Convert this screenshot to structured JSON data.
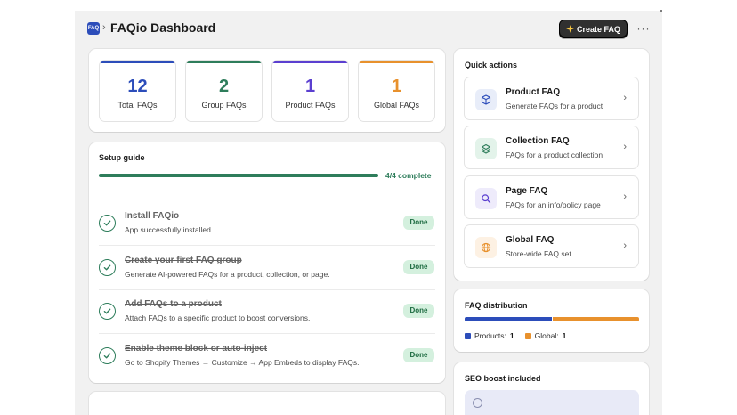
{
  "header": {
    "logo_text": "FAQ",
    "breadcrumb_chevron": "›",
    "title": "FAQio Dashboard",
    "create_button": {
      "icon": "sparkle-icon",
      "label": "Create FAQ"
    },
    "more_label": "···"
  },
  "stats": [
    {
      "value": "12",
      "label": "Total FAQs",
      "color": "#2c4dba"
    },
    {
      "value": "2",
      "label": "Group FAQs",
      "color": "#2e7d5b"
    },
    {
      "value": "1",
      "label": "Product FAQs",
      "color": "#5b3fd0"
    },
    {
      "value": "1",
      "label": "Global FAQs",
      "color": "#e8912d"
    }
  ],
  "setup": {
    "title": "Setup guide",
    "progress_fraction": 1.0,
    "progress_label": "4/4 complete",
    "steps": [
      {
        "title": "Install FAQio",
        "description": "App successfully installed.",
        "status": "Done"
      },
      {
        "title": "Create your first FAQ group",
        "description": "Generate AI-powered FAQs for a product, collection, or page.",
        "status": "Done"
      },
      {
        "title": "Add FAQs to a product",
        "description": "Attach FAQs to a specific product to boost conversions.",
        "status": "Done"
      },
      {
        "title": "Enable theme block or auto-inject",
        "description": "Go to Shopify Themes → Customize → App Embeds to display FAQs.",
        "status": "Done"
      }
    ]
  },
  "quick_actions": {
    "title": "Quick actions",
    "items": [
      {
        "name": "Product FAQ",
        "description": "Generate FAQs for a product",
        "icon": "box-icon",
        "bg": "#e8edf9",
        "color": "#2c4dba"
      },
      {
        "name": "Collection FAQ",
        "description": "FAQs for a product collection",
        "icon": "layers-icon",
        "bg": "#e3f3ea",
        "color": "#2e7d5b"
      },
      {
        "name": "Page FAQ",
        "description": "FAQs for an info/policy page",
        "icon": "search-icon",
        "bg": "#eeebfb",
        "color": "#5b3fd0"
      },
      {
        "name": "Global FAQ",
        "description": "Store-wide FAQ set",
        "icon": "globe-icon",
        "bg": "#fdf1e3",
        "color": "#e8912d"
      }
    ]
  },
  "distribution": {
    "title": "FAQ distribution",
    "segments": [
      {
        "label": "Products:",
        "value": "1",
        "fraction": 0.5,
        "color": "#2c4dba"
      },
      {
        "label": "Global:",
        "value": "1",
        "fraction": 0.5,
        "color": "#e8912d"
      }
    ]
  },
  "seo": {
    "title": "SEO boost included"
  }
}
